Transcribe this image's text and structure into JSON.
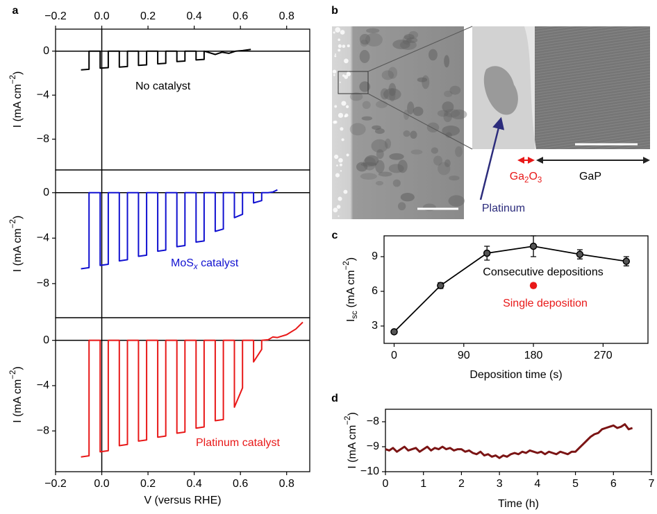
{
  "panels": [
    "a",
    "b",
    "c",
    "d"
  ],
  "micrograph": {
    "platinum": "Platinum",
    "oxide": {
      "text": "Ga",
      "sub": "2",
      "mid": "O",
      "sub2": "3"
    },
    "substrate": "GaP"
  },
  "chart_data": [
    {
      "type": "line",
      "xlim": [
        -0.2,
        0.9
      ],
      "ylim": [
        -10.8,
        2
      ],
      "xticks": [
        {
          "value": -0.2,
          "label": "−0.2"
        },
        {
          "value": 0,
          "label": "0.0"
        },
        0.2,
        0.4,
        0.6,
        0.8
      ],
      "yticks": [
        0,
        {
          "value": -4,
          "label": "−4"
        },
        {
          "value": -8,
          "label": "−8"
        }
      ],
      "y_label": {
        "text": "I (mA cm",
        "sup": "−2",
        "tail": ")"
      },
      "reference_lines": {
        "x": 0,
        "y": 0
      },
      "x": [
        -0.09,
        -0.055,
        -0.055,
        -0.007,
        -0.007,
        0.028,
        0.028,
        0.076,
        0.076,
        0.111,
        0.111,
        0.159,
        0.159,
        0.194,
        0.194,
        0.242,
        0.242,
        0.277,
        0.277,
        0.325,
        0.325,
        0.36,
        0.36,
        0.408,
        0.408,
        0.443,
        0.443,
        0.491,
        0.52,
        0.55,
        0.58,
        0.61,
        0.645
      ],
      "series": [
        {
          "name": "No catalyst",
          "color": "#000000",
          "values": [
            -1.7,
            -1.65,
            0,
            0,
            -1.55,
            -1.5,
            0,
            0,
            -1.45,
            -1.4,
            0,
            0,
            -1.3,
            -1.25,
            0,
            0,
            -1.15,
            -1.1,
            0,
            0,
            -0.95,
            -0.9,
            0,
            0,
            -0.8,
            -0.75,
            0,
            -0.3,
            -0.1,
            -0.2,
            0,
            0.05,
            0.15
          ]
        }
      ]
    },
    {
      "type": "line",
      "xlim": [
        -0.2,
        0.9
      ],
      "ylim": [
        -11,
        2
      ],
      "yticks": [
        0,
        {
          "value": -4,
          "label": "−4"
        },
        {
          "value": -8,
          "label": "−8"
        }
      ],
      "y_label": {
        "text": "I (mA cm",
        "sup": "−2",
        "tail": ")"
      },
      "reference_lines": {
        "x": 0,
        "y": 0
      },
      "x": [
        -0.09,
        -0.055,
        -0.055,
        -0.007,
        -0.007,
        0.028,
        0.028,
        0.076,
        0.076,
        0.111,
        0.111,
        0.159,
        0.159,
        0.194,
        0.194,
        0.242,
        0.242,
        0.277,
        0.277,
        0.325,
        0.325,
        0.36,
        0.36,
        0.408,
        0.408,
        0.443,
        0.443,
        0.491,
        0.491,
        0.526,
        0.526,
        0.574,
        0.574,
        0.609,
        0.609,
        0.657,
        0.657,
        0.692,
        0.692,
        0.72,
        0.74,
        0.76
      ],
      "series": [
        {
          "name": {
            "text": "MoS",
            "sub": "x",
            "tail": " catalyst"
          },
          "color": "#1010d0",
          "values": [
            -6.7,
            -6.6,
            0,
            0,
            -6.4,
            -6.3,
            0,
            0,
            -6.0,
            -5.9,
            0,
            0,
            -5.6,
            -5.5,
            0,
            0,
            -5.15,
            -5.05,
            0,
            0,
            -4.75,
            -4.65,
            0,
            0,
            -4.35,
            -4.25,
            0,
            0,
            -3.4,
            -3.2,
            0,
            0,
            -2.2,
            -1.9,
            0,
            0,
            -0.9,
            -0.7,
            0,
            0,
            0.05,
            0.25
          ]
        }
      ]
    },
    {
      "type": "line",
      "xlim": [
        -0.2,
        0.9
      ],
      "ylim": [
        -11.6,
        2
      ],
      "xticks": [
        {
          "value": -0.2,
          "label": "−0.2"
        },
        {
          "value": 0,
          "label": "0.0"
        },
        0.2,
        0.4,
        0.6,
        0.8
      ],
      "yticks": [
        0,
        {
          "value": -4,
          "label": "−4"
        },
        {
          "value": -8,
          "label": "−8"
        }
      ],
      "x_label": "V (versus RHE)",
      "y_label": {
        "text": "I (mA cm",
        "sup": "−2",
        "tail": ")"
      },
      "reference_lines": {
        "x": 0,
        "y": 0
      },
      "x": [
        -0.09,
        -0.055,
        -0.055,
        -0.007,
        -0.007,
        0.028,
        0.028,
        0.076,
        0.076,
        0.111,
        0.111,
        0.159,
        0.159,
        0.194,
        0.194,
        0.242,
        0.242,
        0.277,
        0.277,
        0.325,
        0.325,
        0.36,
        0.36,
        0.408,
        0.408,
        0.443,
        0.443,
        0.491,
        0.491,
        0.526,
        0.526,
        0.574,
        0.574,
        0.609,
        0.609,
        0.657,
        0.657,
        0.692,
        0.692,
        0.72,
        0.74,
        0.76,
        0.8,
        0.84,
        0.87
      ],
      "series": [
        {
          "name": "Platinum catalyst",
          "color": "#e81818",
          "values": [
            -10.3,
            -10.2,
            0,
            0,
            -9.85,
            -9.75,
            0,
            0,
            -9.3,
            -9.2,
            0,
            0,
            -8.9,
            -8.8,
            0,
            0,
            -8.55,
            -8.45,
            0,
            0,
            -8.2,
            -8.1,
            0,
            0,
            -7.75,
            -7.65,
            0,
            0,
            -7.1,
            -7.0,
            0,
            0,
            -5.9,
            -4.2,
            0,
            0,
            -1.9,
            -0.8,
            0,
            0.05,
            0.3,
            0.25,
            0.5,
            1.0,
            1.6
          ]
        }
      ]
    },
    {
      "type": "errorbar",
      "xlim": [
        -13,
        328
      ],
      "ylim": [
        1.5,
        10.8
      ],
      "xticks": [
        0,
        90,
        180,
        270
      ],
      "yticks": [
        3,
        6,
        9
      ],
      "x_label": "Deposition time (s)",
      "y_label": {
        "text": "I",
        "sub": "sc",
        "mid": " (mA cm",
        "sup": "−2",
        "tail": ")"
      },
      "series": [
        {
          "name": "Consecutive depositions",
          "color": "#000000",
          "connect": true,
          "x": [
            0,
            60,
            120,
            180,
            240,
            300
          ],
          "values": [
            2.5,
            6.5,
            9.3,
            9.9,
            9.2,
            8.6
          ],
          "errors": [
            0.15,
            0.25,
            0.6,
            0.9,
            0.4,
            0.4
          ]
        },
        {
          "name": "Single deposition",
          "color": "#e81818",
          "connect": false,
          "x": [
            180
          ],
          "values": [
            6.5
          ],
          "errors": [
            0.2
          ]
        }
      ]
    },
    {
      "type": "line",
      "xlim": [
        0,
        7
      ],
      "ylim": [
        -10,
        -7.5
      ],
      "xticks": [
        0,
        1,
        2,
        3,
        4,
        5,
        6,
        7
      ],
      "yticks": [
        {
          "value": -10,
          "label": "−10"
        },
        {
          "value": -9,
          "label": "−9"
        },
        {
          "value": -8,
          "label": "−8"
        }
      ],
      "x_label": "Time (h)",
      "y_label": {
        "text": "I (mA cm",
        "sup": "−2",
        "tail": ")"
      },
      "x": [
        0,
        0.1,
        0.2,
        0.3,
        0.4,
        0.5,
        0.6,
        0.7,
        0.8,
        0.9,
        1,
        1.1,
        1.2,
        1.3,
        1.4,
        1.5,
        1.6,
        1.7,
        1.8,
        1.9,
        2,
        2.1,
        2.2,
        2.3,
        2.4,
        2.5,
        2.6,
        2.7,
        2.8,
        2.9,
        3,
        3.1,
        3.2,
        3.3,
        3.4,
        3.5,
        3.6,
        3.7,
        3.8,
        3.9,
        4,
        4.1,
        4.2,
        4.3,
        4.4,
        4.5,
        4.6,
        4.7,
        4.8,
        4.9,
        5,
        5.1,
        5.2,
        5.3,
        5.4,
        5.5,
        5.6,
        5.7,
        5.8,
        5.9,
        6,
        6.1,
        6.2,
        6.3,
        6.4,
        6.5
      ],
      "series": [
        {
          "color": "#7b1414",
          "values": [
            -9.1,
            -9.15,
            -9.05,
            -9.2,
            -9.1,
            -9.0,
            -9.15,
            -9.1,
            -9.05,
            -9.2,
            -9.1,
            -9.0,
            -9.15,
            -9.05,
            -9.1,
            -9.0,
            -9.1,
            -9.05,
            -9.15,
            -9.1,
            -9.1,
            -9.2,
            -9.15,
            -9.25,
            -9.3,
            -9.2,
            -9.35,
            -9.3,
            -9.4,
            -9.35,
            -9.45,
            -9.35,
            -9.4,
            -9.3,
            -9.25,
            -9.3,
            -9.2,
            -9.25,
            -9.15,
            -9.2,
            -9.25,
            -9.2,
            -9.3,
            -9.2,
            -9.25,
            -9.3,
            -9.2,
            -9.25,
            -9.3,
            -9.2,
            -9.2,
            -9.05,
            -8.9,
            -8.75,
            -8.6,
            -8.5,
            -8.45,
            -8.3,
            -8.25,
            -8.2,
            -8.15,
            -8.25,
            -8.2,
            -8.1,
            -8.3,
            -8.25
          ]
        }
      ]
    }
  ]
}
